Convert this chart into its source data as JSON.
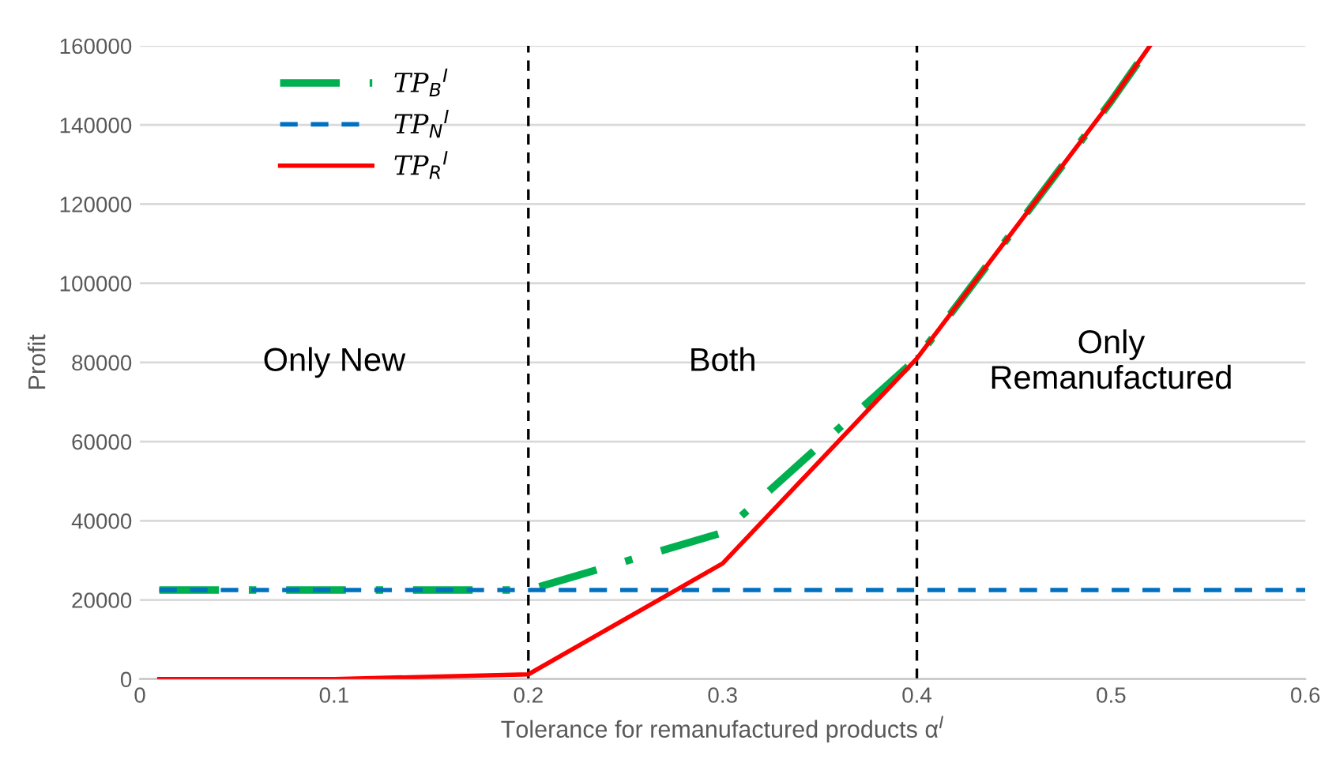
{
  "chart_data": {
    "type": "line",
    "xlabel": "Tolerance for remanufactured products α$^{I}$",
    "ylabel": "Profit",
    "x": [
      0.01,
      0.1,
      0.2,
      0.3,
      0.4,
      0.5,
      0.52
    ],
    "series": [
      {
        "name": "TP$_{B}$$^{I}$",
        "color": "#00b050",
        "line_style": "dashdot",
        "values": [
          22500,
          22500,
          22500,
          37000,
          81000,
          146000,
          160000
        ]
      },
      {
        "name": "TP$_{N}$$^{I}$",
        "color": "#0070c0",
        "line_style": "dashed",
        "x": [
          0.01,
          0.6
        ],
        "values": [
          22500,
          22500
        ]
      },
      {
        "name": "TP$_{R}$$^{I}$",
        "color": "#ff0000",
        "line_style": "solid",
        "values": [
          0,
          0,
          1200,
          29200,
          81000,
          146000,
          160000
        ]
      }
    ],
    "xlim": [
      0,
      0.6
    ],
    "ylim": [
      0,
      160000
    ],
    "xticks": [
      0,
      0.1,
      0.2,
      0.3,
      0.4,
      0.5,
      0.6
    ],
    "yticks": [
      0,
      20000,
      40000,
      60000,
      80000,
      100000,
      120000,
      140000,
      160000
    ],
    "grid": "y",
    "legend": "top left",
    "marker": "none",
    "ref_lines": [
      {
        "axis": "x",
        "value": 0.2,
        "color": "#000000",
        "line_style": "dashed"
      },
      {
        "axis": "x",
        "value": 0.4,
        "color": "#000000",
        "line_style": "dashed"
      }
    ],
    "annotations": [
      "Only New",
      "Both",
      "Only\nRemanufactured"
    ]
  }
}
